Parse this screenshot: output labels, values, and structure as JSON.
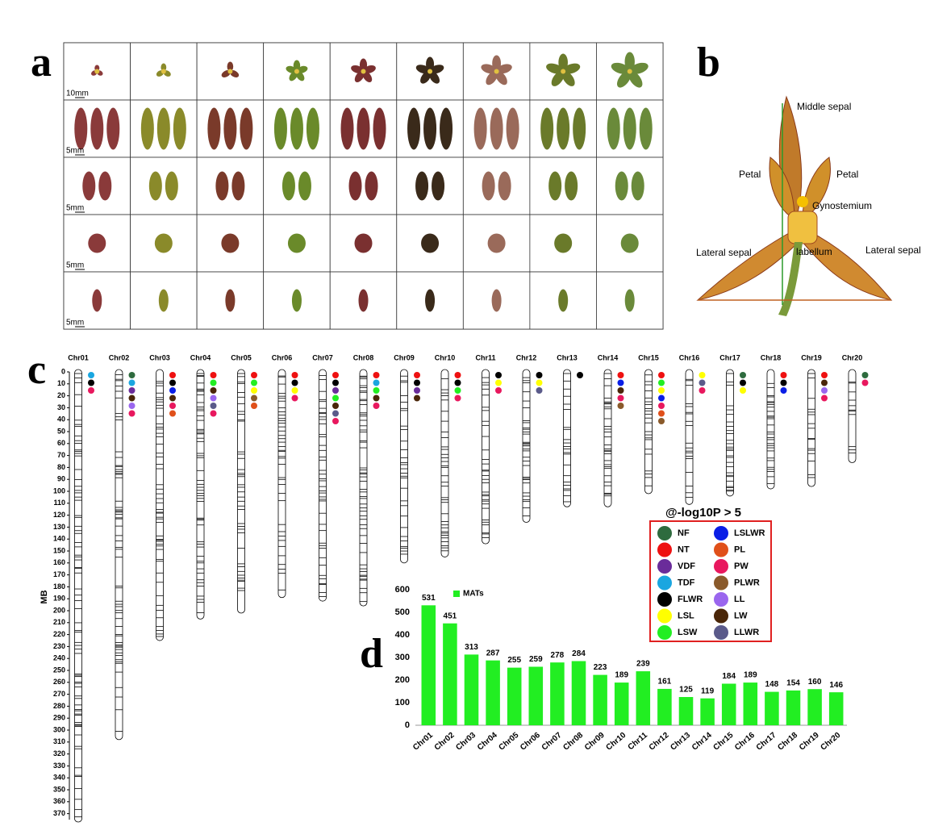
{
  "panel_labels": [
    "a",
    "b",
    "c",
    "d"
  ],
  "panel_a": {
    "scale_labels": [
      "10mm",
      "5mm",
      "5mm",
      "5mm",
      "5mm"
    ]
  },
  "panel_b": {
    "labels": [
      "Middle sepal",
      "Petal",
      "Petal",
      "Gynostemium",
      "Lateral sepal",
      "labellum",
      "Lateral sepal"
    ]
  },
  "chart_data": [
    {
      "type": "chromosome",
      "y_label": "MB",
      "categories": [
        "Chr01",
        "Chr02",
        "Chr03",
        "Chr04",
        "Chr05",
        "Chr06",
        "Chr07",
        "Chr08",
        "Chr09",
        "Chr10",
        "Chr11",
        "Chr12",
        "Chr13",
        "Chr14",
        "Chr15",
        "Chr16",
        "Chr17",
        "Chr18",
        "Chr19",
        "Chr20"
      ],
      "values": [
        375,
        306,
        223,
        205,
        200,
        187,
        190,
        194,
        158,
        153,
        142,
        124,
        111,
        111,
        100,
        109,
        102,
        96,
        94,
        74
      ],
      "traits": [
        [
          "TDF",
          "FLWR",
          "PW"
        ],
        [
          "NF",
          "TDF",
          "VDF",
          "LW",
          "LL",
          "PW"
        ],
        [
          "NT",
          "FLWR",
          "LSLWR",
          "LW",
          "PW",
          "PL"
        ],
        [
          "NT",
          "LSW",
          "LW",
          "LL",
          "LLWR",
          "PW"
        ],
        [
          "NT",
          "LSW",
          "LSL",
          "PLWR",
          "PL"
        ],
        [
          "NT",
          "FLWR",
          "LSL",
          "PW"
        ],
        [
          "NT",
          "FLWR",
          "VDF",
          "LSW",
          "LW",
          "LLWR",
          "PW"
        ],
        [
          "NT",
          "TDF",
          "LSW",
          "LW",
          "PW"
        ],
        [
          "NT",
          "FLWR",
          "VDF",
          "LW"
        ],
        [
          "NT",
          "FLWR",
          "LSW",
          "PW"
        ],
        [
          "FLWR",
          "LSL",
          "PW"
        ],
        [
          "FLWR",
          "LSL",
          "LLWR"
        ],
        [
          "FLWR"
        ],
        [
          "NT",
          "LSLWR",
          "LW",
          "PW",
          "PLWR"
        ],
        [
          "NT",
          "LSW",
          "LSL",
          "LSLWR",
          "PW",
          "PL",
          "PLWR"
        ],
        [
          "LSL",
          "LLWR",
          "PW"
        ],
        [
          "NF",
          "FLWR",
          "LSL"
        ],
        [
          "NT",
          "FLWR",
          "LSLWR"
        ],
        [
          "NT",
          "LW",
          "LL",
          "PW"
        ],
        [
          "NF",
          "PW"
        ]
      ],
      "ylim": [
        0,
        375
      ],
      "yticks": [
        0,
        10,
        20,
        30,
        40,
        50,
        60,
        70,
        80,
        90,
        100,
        110,
        120,
        130,
        140,
        150,
        160,
        170,
        180,
        190,
        200,
        210,
        220,
        230,
        240,
        250,
        260,
        270,
        280,
        290,
        300,
        310,
        320,
        330,
        340,
        350,
        360,
        370
      ],
      "legend": {
        "title": "@-log10P > 5",
        "position": "right",
        "items": [
          {
            "name": "NF",
            "color": "#2e6b3e"
          },
          {
            "name": "LSLWR",
            "color": "#0a1ee6"
          },
          {
            "name": "NT",
            "color": "#ee1111"
          },
          {
            "name": "PL",
            "color": "#e0501a"
          },
          {
            "name": "VDF",
            "color": "#6a2c9a"
          },
          {
            "name": "PW",
            "color": "#e8185e"
          },
          {
            "name": "TDF",
            "color": "#1aa6e0"
          },
          {
            "name": "PLWR",
            "color": "#8a5a2b"
          },
          {
            "name": "FLWR",
            "color": "#000000"
          },
          {
            "name": "LL",
            "color": "#9a66ee"
          },
          {
            "name": "LSL",
            "color": "#ffff00"
          },
          {
            "name": "LW",
            "color": "#4a2608"
          },
          {
            "name": "LSW",
            "color": "#22ee22"
          },
          {
            "name": "LLWR",
            "color": "#5a5a8a"
          }
        ]
      }
    },
    {
      "type": "bar",
      "categories": [
        "Chr01",
        "Chr02",
        "Chr03",
        "Chr04",
        "Chr05",
        "Chr06",
        "Chr07",
        "Chr08",
        "Chr09",
        "Chr10",
        "Chr11",
        "Chr12",
        "Chr13",
        "Chr14",
        "Chr15",
        "Chr16",
        "Chr17",
        "Chr18",
        "Chr19",
        "Chr20"
      ],
      "series": [
        {
          "name": "MATs",
          "color": "#22ee22",
          "values": [
            531,
            451,
            313,
            287,
            255,
            259,
            278,
            284,
            223,
            189,
            239,
            161,
            125,
            119,
            184,
            189,
            148,
            154,
            160,
            146
          ]
        }
      ],
      "ylim": [
        0,
        600
      ],
      "yticks": [
        0,
        100,
        200,
        300,
        400,
        500,
        600
      ],
      "data_labels": true,
      "legend": "top-left"
    }
  ]
}
